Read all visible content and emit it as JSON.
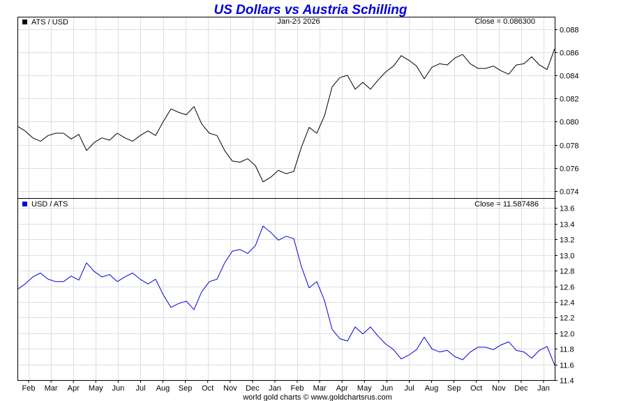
{
  "chart_data": [
    {
      "type": "line",
      "title": "US Dollars vs Austria Schilling",
      "date_label": "Jan-26  2026",
      "credit": "world gold charts © www.goldchartsrus.com",
      "x_ticks": [
        "Feb",
        "Mar",
        "Apr",
        "May",
        "Jun",
        "Jul",
        "Aug",
        "Sep",
        "Oct",
        "Nov",
        "Dec",
        "Jan",
        "Feb",
        "Mar",
        "Apr",
        "May",
        "Jun",
        "Jul",
        "Aug",
        "Sep",
        "Oct",
        "Nov",
        "Dec",
        "Jan"
      ],
      "series": [
        {
          "name": "ATS / USD",
          "color": "#000000",
          "close_label": "Close = 0.086300",
          "ylim": [
            0.0734,
            0.089
          ],
          "y_ticks": [
            "0.074",
            "0.076",
            "0.078",
            "0.080",
            "0.082",
            "0.084",
            "0.086",
            "0.088"
          ],
          "values": [
            0.0796,
            0.0792,
            0.0786,
            0.0783,
            0.0788,
            0.079,
            0.079,
            0.0785,
            0.0789,
            0.0775,
            0.0782,
            0.0786,
            0.0784,
            0.079,
            0.0786,
            0.0783,
            0.0788,
            0.0792,
            0.0788,
            0.08,
            0.0811,
            0.0808,
            0.0806,
            0.0813,
            0.0798,
            0.079,
            0.0788,
            0.0775,
            0.0766,
            0.0765,
            0.0768,
            0.0762,
            0.0748,
            0.0752,
            0.0758,
            0.0755,
            0.0757,
            0.0778,
            0.0795,
            0.079,
            0.0805,
            0.083,
            0.0838,
            0.084,
            0.0828,
            0.0834,
            0.0828,
            0.0836,
            0.0843,
            0.0848,
            0.0857,
            0.0853,
            0.0848,
            0.0837,
            0.0847,
            0.085,
            0.0849,
            0.0855,
            0.0858,
            0.085,
            0.0846,
            0.0846,
            0.0848,
            0.0844,
            0.0841,
            0.0849,
            0.085,
            0.0856,
            0.0849,
            0.0845,
            0.0863
          ]
        }
      ]
    },
    {
      "type": "line",
      "series": [
        {
          "name": "USD / ATS",
          "color": "#0000dd",
          "close_label": "Close = 11.587486",
          "ylim": [
            11.4,
            13.72
          ],
          "y_ticks": [
            "11.4",
            "11.6",
            "11.8",
            "12.0",
            "12.2",
            "12.4",
            "12.6",
            "12.8",
            "13.0",
            "13.2",
            "13.4",
            "13.6"
          ],
          "values": [
            12.56,
            12.63,
            12.72,
            12.77,
            12.69,
            12.66,
            12.66,
            12.73,
            12.68,
            12.9,
            12.79,
            12.72,
            12.75,
            12.66,
            12.72,
            12.77,
            12.69,
            12.63,
            12.69,
            12.49,
            12.33,
            12.38,
            12.41,
            12.3,
            12.53,
            12.66,
            12.69,
            12.9,
            13.05,
            13.07,
            13.02,
            13.12,
            13.37,
            13.29,
            13.19,
            13.24,
            13.21,
            12.85,
            12.58,
            12.66,
            12.42,
            12.05,
            11.93,
            11.9,
            12.08,
            11.99,
            12.08,
            11.96,
            11.86,
            11.79,
            11.67,
            11.72,
            11.79,
            11.95,
            11.8,
            11.76,
            11.78,
            11.7,
            11.66,
            11.76,
            11.82,
            11.82,
            11.79,
            11.85,
            11.89,
            11.78,
            11.76,
            11.68,
            11.78,
            11.83,
            11.59
          ]
        }
      ]
    }
  ]
}
